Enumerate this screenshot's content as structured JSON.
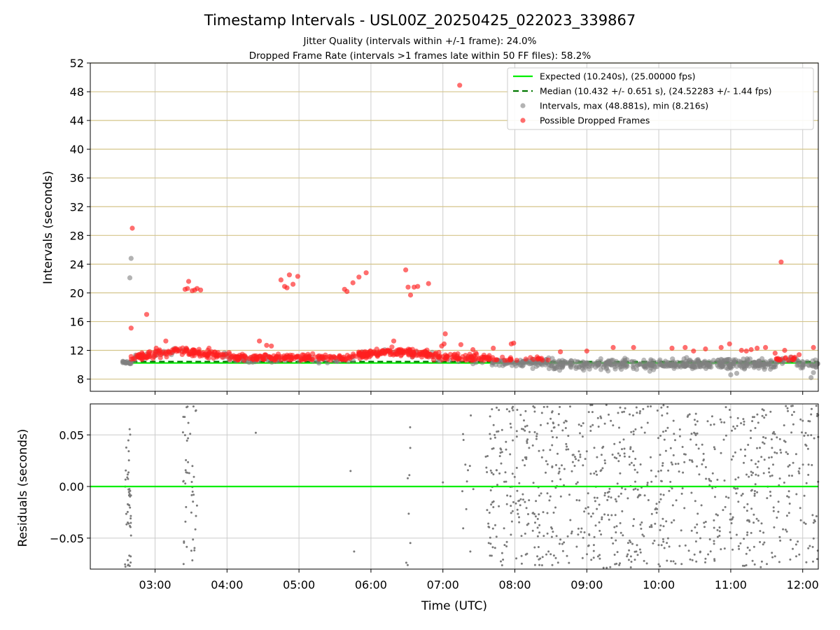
{
  "figure": {
    "title": "Timestamp Intervals - USL00Z_20250425_022023_339867",
    "subtitle_1": "Jitter Quality (intervals within +/-1 frame): 24.0%",
    "subtitle_2": "Dropped Frame Rate (intervals >1 frames late within 50 FF files): 58.2%",
    "xlabel": "Time (UTC)"
  },
  "colors": {
    "expected": "#00ee00",
    "median": "#007700",
    "intervals": "#808080",
    "dropped": "#ff2020",
    "hgrid": "#d4c58a",
    "vgrid": "#cccccc",
    "residuals": "#7a7a7a"
  },
  "chart_data": [
    {
      "type": "scatter",
      "ylabel": "Intervals (seconds)",
      "x_range": [
        "02:06",
        "12:13"
      ],
      "ylim": [
        6.3,
        52
      ],
      "yticks": [
        "8",
        "12",
        "16",
        "20",
        "24",
        "28",
        "32",
        "36",
        "40",
        "44",
        "48",
        "52"
      ],
      "grid": "horizontal and vertical",
      "legend_position": "top-right",
      "legend": [
        "Expected (10.240s), (25.00000 fps)",
        "Median (10.432 +/- 0.651 s), (24.52283 +/- 1.44 fps)",
        "Intervals, max (48.881s), min (8.216s)",
        "Possible Dropped Frames"
      ],
      "expected_interval": 10.24,
      "median_interval": 10.432,
      "series": [
        {
          "name": "Possible Dropped Frames",
          "outliers": [
            [
              "02:40",
              15.1
            ],
            [
              "02:41",
              29.0
            ],
            [
              "02:53",
              17.0
            ],
            [
              "03:01",
              12.3
            ],
            [
              "03:09",
              13.3
            ],
            [
              "03:25",
              20.5
            ],
            [
              "03:27",
              20.6
            ],
            [
              "03:28",
              21.6
            ],
            [
              "03:31",
              20.3
            ],
            [
              "03:33",
              20.4
            ],
            [
              "03:35",
              20.6
            ],
            [
              "03:38",
              20.4
            ],
            [
              "04:27",
              13.3
            ],
            [
              "04:33",
              12.7
            ],
            [
              "04:37",
              12.6
            ],
            [
              "04:45",
              21.8
            ],
            [
              "04:48",
              20.9
            ],
            [
              "04:50",
              20.7
            ],
            [
              "04:52",
              22.5
            ],
            [
              "04:55",
              21.2
            ],
            [
              "04:59",
              22.3
            ],
            [
              "05:38",
              20.5
            ],
            [
              "05:40",
              20.2
            ],
            [
              "05:45",
              21.4
            ],
            [
              "05:50",
              22.2
            ],
            [
              "05:56",
              22.8
            ],
            [
              "06:19",
              13.3
            ],
            [
              "06:29",
              23.2
            ],
            [
              "06:31",
              20.8
            ],
            [
              "06:33",
              19.7
            ],
            [
              "06:36",
              20.8
            ],
            [
              "06:39",
              20.9
            ],
            [
              "06:48",
              21.3
            ],
            [
              "06:59",
              12.6
            ],
            [
              "07:01",
              12.9
            ],
            [
              "07:02",
              14.3
            ],
            [
              "07:14",
              48.9
            ],
            [
              "07:15",
              12.8
            ],
            [
              "07:25",
              12.1
            ],
            [
              "07:42",
              12.3
            ],
            [
              "07:57",
              12.9
            ],
            [
              "07:59",
              13.0
            ],
            [
              "08:38",
              11.8
            ],
            [
              "09:00",
              11.9
            ],
            [
              "09:22",
              12.4
            ],
            [
              "09:39",
              12.4
            ],
            [
              "10:11",
              12.3
            ],
            [
              "10:22",
              12.4
            ],
            [
              "10:29",
              11.9
            ],
            [
              "10:39",
              12.2
            ],
            [
              "10:52",
              12.4
            ],
            [
              "10:59",
              12.9
            ],
            [
              "11:09",
              12.0
            ],
            [
              "11:13",
              11.9
            ],
            [
              "11:17",
              12.1
            ],
            [
              "11:22",
              12.3
            ],
            [
              "11:29",
              12.4
            ],
            [
              "11:37",
              11.6
            ],
            [
              "11:42",
              24.3
            ],
            [
              "11:45",
              12.0
            ],
            [
              "11:57",
              11.4
            ],
            [
              "12:09",
              12.4
            ]
          ]
        },
        {
          "name": "Intervals, max (48.881s), min (8.216s)",
          "outliers": [
            [
              "02:39",
              22.1
            ],
            [
              "02:40",
              24.8
            ],
            [
              "11:00",
              8.6
            ],
            [
              "11:05",
              8.8
            ],
            [
              "12:07",
              8.2
            ],
            [
              "12:09",
              8.9
            ]
          ]
        }
      ]
    },
    {
      "type": "scatter",
      "ylabel": "Residuals (seconds)",
      "x_range": [
        "02:06",
        "12:13"
      ],
      "ylim": [
        -0.08,
        0.08
      ],
      "yticks": [
        "−0.05",
        "0.00",
        "0.05"
      ],
      "reference_line": 0.0,
      "xticks": [
        "03:00",
        "04:00",
        "05:00",
        "06:00",
        "07:00",
        "08:00",
        "09:00",
        "10:00",
        "11:00",
        "12:00"
      ]
    }
  ]
}
